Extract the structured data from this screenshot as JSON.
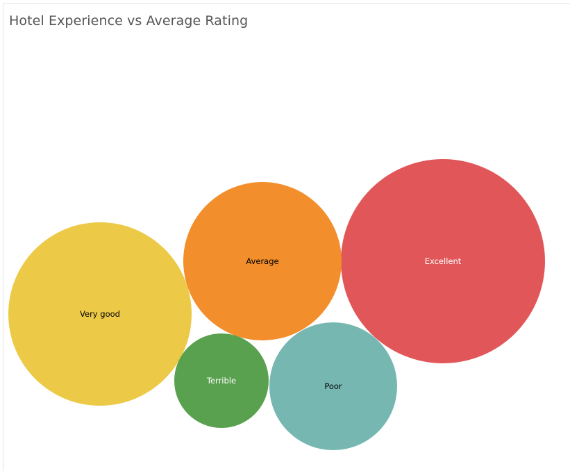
{
  "chart_data": {
    "type": "bubble",
    "title": "Hotel Experience vs Average Rating",
    "bubbles": [
      {
        "label": "Excellent",
        "color": "#e15759",
        "label_color": "#ffffff"
      },
      {
        "label": "Average",
        "color": "#f28e2b",
        "label_color": "#000000"
      },
      {
        "label": "Very good",
        "color": "#edc948",
        "label_color": "#000000"
      },
      {
        "label": "Poor",
        "color": "#76b7b2",
        "label_color": "#000000"
      },
      {
        "label": "Terrible",
        "color": "#59a14f",
        "label_color": "#ffffff"
      }
    ]
  }
}
